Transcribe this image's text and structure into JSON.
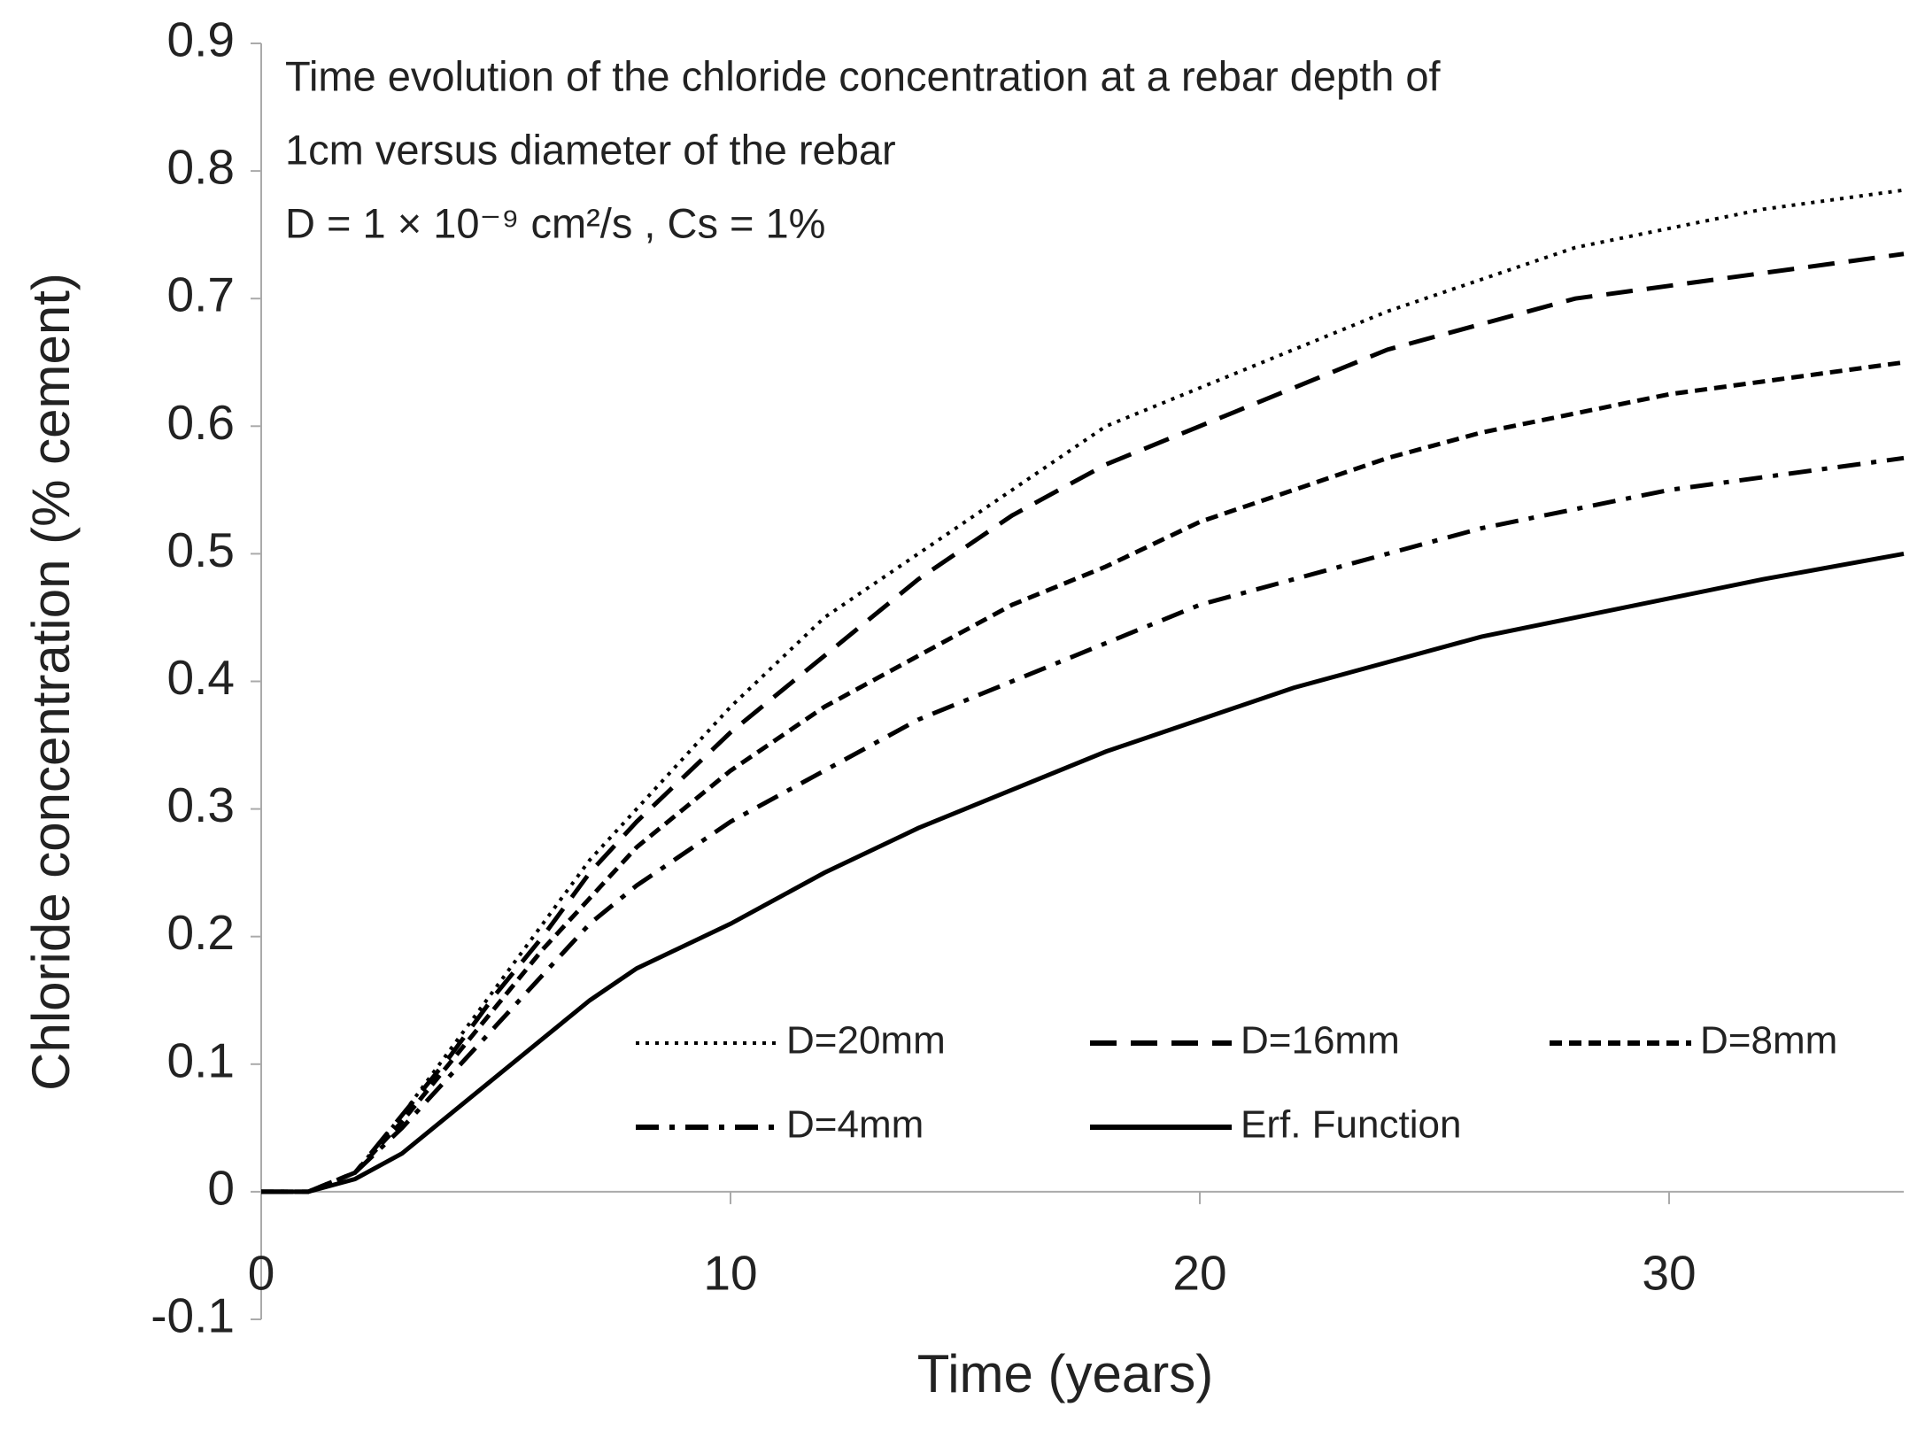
{
  "chart_data": {
    "type": "line",
    "annotation": [
      "Time evolution of the chloride concentration at a rebar depth of",
      "1cm versus diameter of the rebar",
      "D = 1 × 10⁻⁹  cm²/s , Cs = 1%"
    ],
    "x_label": "Time (years)",
    "y_label": "Chloride concentration (% cement)",
    "x": [
      0,
      1,
      2,
      3,
      4,
      5,
      6,
      7,
      8,
      10,
      12,
      14,
      16,
      18,
      20,
      22,
      24,
      26,
      28,
      30,
      32,
      35
    ],
    "series": [
      {
        "name": "D=20mm",
        "color": "#000000",
        "style": "dotted",
        "values": [
          0,
          0,
          0.015,
          0.06,
          0.11,
          0.16,
          0.21,
          0.26,
          0.3,
          0.38,
          0.45,
          0.5,
          0.55,
          0.6,
          0.63,
          0.66,
          0.69,
          0.715,
          0.74,
          0.755,
          0.77,
          0.785
        ]
      },
      {
        "name": "D=16mm",
        "color": "#000000",
        "style": "long-dash",
        "values": [
          0,
          0,
          0.015,
          0.06,
          0.105,
          0.155,
          0.2,
          0.25,
          0.29,
          0.36,
          0.42,
          0.48,
          0.53,
          0.57,
          0.6,
          0.63,
          0.66,
          0.68,
          0.7,
          0.71,
          0.72,
          0.735
        ]
      },
      {
        "name": "D=8mm",
        "color": "#000000",
        "style": "short-dash",
        "values": [
          0,
          0,
          0.015,
          0.055,
          0.1,
          0.145,
          0.19,
          0.23,
          0.27,
          0.33,
          0.38,
          0.42,
          0.46,
          0.49,
          0.525,
          0.55,
          0.575,
          0.595,
          0.61,
          0.625,
          0.635,
          0.65
        ]
      },
      {
        "name": "D=4mm",
        "color": "#000000",
        "style": "dash-dot",
        "values": [
          0,
          0,
          0.015,
          0.05,
          0.09,
          0.13,
          0.17,
          0.21,
          0.24,
          0.29,
          0.33,
          0.37,
          0.4,
          0.43,
          0.46,
          0.48,
          0.5,
          0.52,
          0.535,
          0.55,
          0.56,
          0.575
        ]
      },
      {
        "name": "Erf. Function",
        "color": "#000000",
        "style": "solid",
        "values": [
          0,
          0,
          0.01,
          0.03,
          0.06,
          0.09,
          0.12,
          0.15,
          0.175,
          0.21,
          0.25,
          0.285,
          0.315,
          0.345,
          0.37,
          0.395,
          0.415,
          0.435,
          0.45,
          0.465,
          0.48,
          0.5
        ]
      }
    ],
    "xlim": [
      0,
      35
    ],
    "xticks": [
      0,
      10,
      20,
      30
    ],
    "ylim": [
      -0.1,
      0.9
    ],
    "yticks": [
      -0.1,
      0,
      0.1,
      0.2,
      0.3,
      0.4,
      0.5,
      0.6,
      0.7,
      0.8,
      0.9
    ],
    "grid": false,
    "legend": "bottom-right"
  }
}
